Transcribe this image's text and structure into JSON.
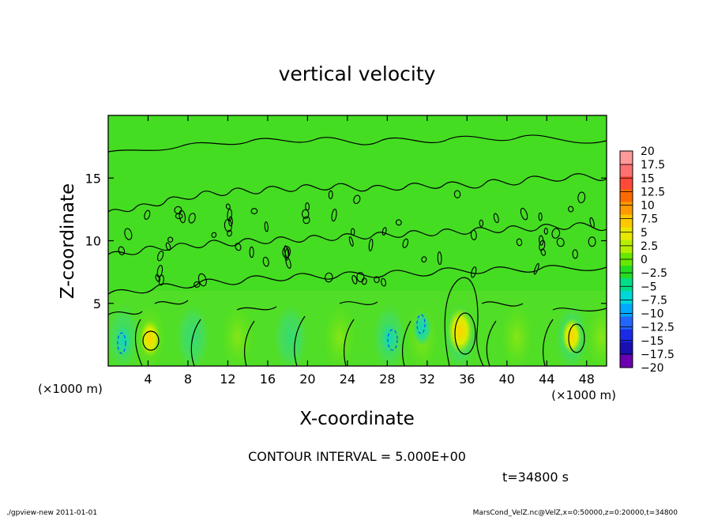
{
  "chart_data": {
    "type": "heatmap",
    "title": "vertical velocity",
    "xlabel": "X-coordinate",
    "ylabel": "Z-coordinate",
    "x_unit_label": "(×1000 m)",
    "y_unit_label": "(×1000 m)",
    "xlim": [
      0,
      50
    ],
    "ylim": [
      0,
      20
    ],
    "x_ticks": [
      4,
      8,
      12,
      16,
      20,
      24,
      28,
      32,
      36,
      40,
      44,
      48
    ],
    "y_ticks": [
      5,
      10,
      15
    ],
    "contour_interval_label": "CONTOUR INTERVAL = 5.000E+00",
    "time_label": "t=34800 s",
    "colorbar": {
      "labels": [
        "20",
        "17.5",
        "15",
        "12.5",
        "10",
        "7.5",
        "5",
        "2.5",
        "0",
        "−2.5",
        "−5",
        "−7.5",
        "−10",
        "−12.5",
        "−15",
        "−17.5",
        "−20"
      ],
      "colors": [
        "#ff9a9a",
        "#ff7070",
        "#ff4a3a",
        "#ff6a00",
        "#ff9a00",
        "#ffc800",
        "#e8e800",
        "#b4ee00",
        "#66e800",
        "#22dd22",
        "#00dd88",
        "#00d8d8",
        "#00a8ff",
        "#2266ff",
        "#1a2ae6",
        "#1a10b0",
        "#6a00b0"
      ]
    },
    "features": [
      {
        "x": 1.5,
        "z": 2.0,
        "value": -5
      },
      {
        "x": 4.2,
        "z": 2.2,
        "value": 5
      },
      {
        "x": 28.2,
        "z": 2.2,
        "value": -5
      },
      {
        "x": 31.5,
        "z": 3.0,
        "value": -5
      },
      {
        "x": 35.3,
        "z": 2.8,
        "value": 7.5
      },
      {
        "x": 46.5,
        "z": 2.4,
        "value": 5
      }
    ]
  },
  "footer": {
    "left": "./gpview-new   2011-01-01",
    "right": "MarsCond_VelZ.nc@VelZ,x=0:50000,z=0:20000,t=34800"
  }
}
